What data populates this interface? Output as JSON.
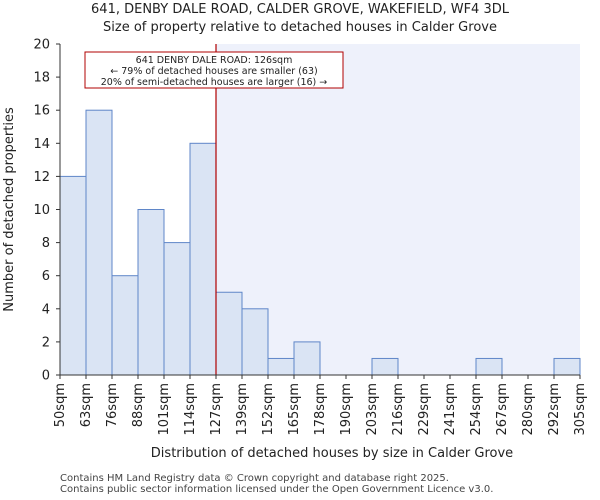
{
  "chart_data": {
    "type": "bar",
    "title_line1": "641, DENBY DALE ROAD, CALDER GROVE, WAKEFIELD, WF4 3DL",
    "title_line2": "Size of property relative to detached houses in Calder Grove",
    "xlabel": "Distribution of detached houses by size in Calder Grove",
    "ylabel": "Number of detached properties",
    "ylim": [
      0,
      20
    ],
    "yticks": [
      0,
      2,
      4,
      6,
      8,
      10,
      12,
      14,
      16,
      18,
      20
    ],
    "bin_edges": [
      "50sqm",
      "63sqm",
      "76sqm",
      "88sqm",
      "101sqm",
      "114sqm",
      "127sqm",
      "139sqm",
      "152sqm",
      "165sqm",
      "178sqm",
      "190sqm",
      "203sqm",
      "216sqm",
      "229sqm",
      "241sqm",
      "254sqm",
      "267sqm",
      "280sqm",
      "292sqm",
      "305sqm"
    ],
    "values": [
      12,
      16,
      6,
      10,
      8,
      14,
      5,
      4,
      1,
      2,
      0,
      0,
      1,
      0,
      0,
      0,
      1,
      0,
      0,
      1
    ],
    "marker_bin_index": 6,
    "annotation": {
      "line1": "641 DENBY DALE ROAD: 126sqm",
      "line2": "← 79% of detached houses are smaller (63)",
      "line3": "20% of semi-detached houses are larger (16) →"
    },
    "colors": {
      "bar_fill": "#dae4f4",
      "bar_stroke": "#5f86c8",
      "marker_line": "#b00000",
      "shade_right": "#eef1fb",
      "axis": "#333333",
      "text": "#222222"
    }
  },
  "footer": {
    "line1": "Contains HM Land Registry data © Crown copyright and database right 2025.",
    "line2": "Contains public sector information licensed under the Open Government Licence v3.0."
  }
}
